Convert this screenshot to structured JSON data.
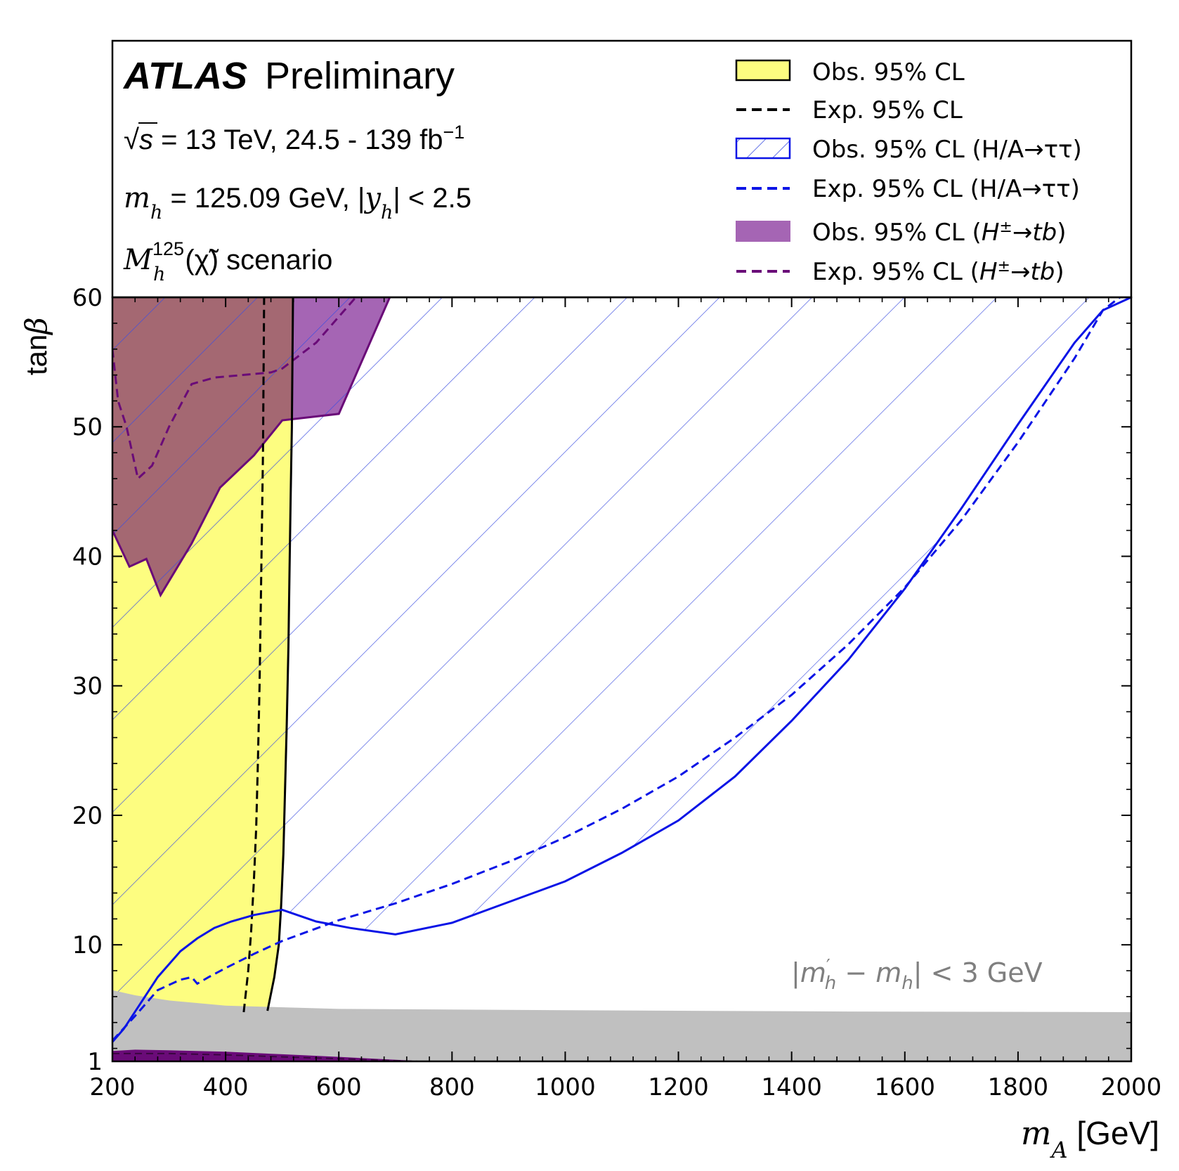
{
  "chart_data": {
    "type": "area",
    "experiment": {
      "label_bold": "ATLAS",
      "label_rest": "Preliminary"
    },
    "info_lines": [
      "√s = 13 TeV, 24.5 - 139 fb⁻¹",
      "m_h = 125.09 GeV, |y_h| < 2.5",
      "M_h^125(χ̃) scenario"
    ],
    "info_parts": {
      "sqrt": "√",
      "s": "s",
      "energy": " = 13 TeV, 24.5 - 139 fb",
      "lumi_exp": "−1",
      "m": "m",
      "h": "h",
      "mh_value": " = 125.09 GeV, |",
      "y": "y",
      "yh_cut": "| < 2.5",
      "M": "M",
      "M_sup": "125",
      "chi": "(χ̃)",
      "scenario": " scenario"
    },
    "xlabel": {
      "var": "m",
      "sub": "A",
      "unit": " [GeV]"
    },
    "ylabel": {
      "text": "tan",
      "greek": "β"
    },
    "xlim": [
      200,
      2000
    ],
    "ylim": [
      1,
      60
    ],
    "xticks": [
      200,
      400,
      600,
      800,
      1000,
      1200,
      1400,
      1600,
      1800,
      2000
    ],
    "yticks": [
      1,
      10,
      20,
      30,
      40,
      50,
      60
    ],
    "legend_position": "top-right",
    "legend": [
      {
        "label": "Obs. 95% CL",
        "style": "fill-yellow"
      },
      {
        "label": "Exp. 95% CL",
        "style": "dash-black"
      },
      {
        "label": "Obs. 95% CL (H/A→ττ)",
        "style": "hatch-blue"
      },
      {
        "label": "Exp. 95% CL (H/A→ττ)",
        "style": "dash-blue"
      },
      {
        "label_pre": "Obs. 95% CL (",
        "label_H": "H",
        "label_pm": "±",
        "label_arrow": "→",
        "label_tb": "tb",
        "label_post": ")",
        "style": "fill-purple"
      },
      {
        "label_pre": "Exp. 95% CL (",
        "label_H": "H",
        "label_pm": "±",
        "label_arrow": "→",
        "label_tb": "tb",
        "label_post": ")",
        "style": "dash-purple"
      }
    ],
    "annotation": {
      "text": "|m′_h − m_h| < 3 GeV",
      "pre": "|",
      "m1": "m",
      "m1_sub": "h",
      "m1_prime": "′",
      "minus": " − ",
      "m2": "m",
      "m2_sub": "h",
      "post": "| < 3 GeV"
    },
    "colors": {
      "yellow": "#fdfd80",
      "blue": "#0a14e6",
      "hatch": "#3c4ee0",
      "purple_fill": "#a565b4",
      "purple_dark": "#6a0b78",
      "overlap": "#a46872",
      "grey": "#c0c0c0"
    },
    "series": [
      {
        "name": "Obs. 95% CL",
        "points": [
          [
            474,
            4.9
          ],
          [
            486,
            7.5
          ],
          [
            494,
            10
          ],
          [
            498,
            13
          ],
          [
            502,
            17
          ],
          [
            505,
            22
          ],
          [
            508,
            27
          ],
          [
            511,
            33
          ],
          [
            513,
            39
          ],
          [
            515,
            45
          ],
          [
            517,
            50
          ],
          [
            518,
            55
          ],
          [
            519,
            60
          ]
        ]
      },
      {
        "name": "Exp. 95% CL",
        "points": [
          [
            432,
            4.8
          ],
          [
            440,
            8
          ],
          [
            445,
            11
          ],
          [
            450,
            15
          ],
          [
            454,
            19
          ],
          [
            457,
            24
          ],
          [
            460,
            30
          ],
          [
            462,
            36
          ],
          [
            464,
            42
          ],
          [
            466,
            48
          ],
          [
            467,
            54
          ],
          [
            468,
            60
          ]
        ]
      },
      {
        "name": "Obs. 95% CL (H/A→ττ)",
        "points": [
          [
            200,
            2.5
          ],
          [
            220,
            3.5
          ],
          [
            250,
            5.5
          ],
          [
            280,
            7.5
          ],
          [
            300,
            8.5
          ],
          [
            320,
            9.5
          ],
          [
            350,
            10.5
          ],
          [
            380,
            11.3
          ],
          [
            410,
            11.8
          ],
          [
            450,
            12.3
          ],
          [
            500,
            12.7
          ],
          [
            560,
            11.8
          ],
          [
            620,
            11.3
          ],
          [
            700,
            10.8
          ],
          [
            800,
            11.7
          ],
          [
            900,
            13.3
          ],
          [
            1000,
            14.9
          ],
          [
            1100,
            17.1
          ],
          [
            1200,
            19.6
          ],
          [
            1300,
            23
          ],
          [
            1400,
            27.3
          ],
          [
            1500,
            32
          ],
          [
            1600,
            37.5
          ],
          [
            1700,
            43.7
          ],
          [
            1800,
            50.2
          ],
          [
            1900,
            56.5
          ],
          [
            1950,
            59
          ],
          [
            2000,
            60
          ]
        ]
      },
      {
        "name": "Exp. 95% CL (H/A→ττ)",
        "points": [
          [
            200,
            2.6
          ],
          [
            240,
            4.5
          ],
          [
            280,
            6.5
          ],
          [
            320,
            7.3
          ],
          [
            340,
            7.5
          ],
          [
            350,
            7
          ],
          [
            370,
            7.5
          ],
          [
            400,
            8.2
          ],
          [
            450,
            9.3
          ],
          [
            500,
            10.3
          ],
          [
            600,
            11.9
          ],
          [
            700,
            13.2
          ],
          [
            800,
            14.7
          ],
          [
            900,
            16.4
          ],
          [
            1000,
            18.3
          ],
          [
            1100,
            20.5
          ],
          [
            1200,
            23
          ],
          [
            1300,
            26
          ],
          [
            1400,
            29.3
          ],
          [
            1500,
            33.2
          ],
          [
            1600,
            37.6
          ],
          [
            1700,
            42.8
          ],
          [
            1800,
            48.8
          ],
          [
            1900,
            55.3
          ],
          [
            1950,
            59
          ],
          [
            1980,
            60
          ]
        ]
      },
      {
        "name": "Obs. 95% CL (H±→tb)",
        "points": [
          [
            200,
            60
          ],
          [
            200,
            42
          ],
          [
            230,
            39.2
          ],
          [
            260,
            39.8
          ],
          [
            285,
            37
          ],
          [
            340,
            41
          ],
          [
            390,
            45.3
          ],
          [
            450,
            47.8
          ],
          [
            500,
            50.5
          ],
          [
            600,
            51
          ],
          [
            690,
            60
          ]
        ]
      },
      {
        "name": "Exp. 95% CL (H±→tb)",
        "points": [
          [
            200,
            56
          ],
          [
            210,
            52
          ],
          [
            225,
            50
          ],
          [
            245,
            46
          ],
          [
            270,
            47
          ],
          [
            300,
            50
          ],
          [
            340,
            53.3
          ],
          [
            380,
            53.8
          ],
          [
            430,
            54
          ],
          [
            480,
            54.2
          ],
          [
            500,
            54.5
          ],
          [
            560,
            56.5
          ],
          [
            600,
            58.5
          ],
          [
            630,
            60
          ]
        ]
      },
      {
        "name": "Obs. 95% CL (H±→tb) low",
        "points": [
          [
            200,
            1.8
          ],
          [
            240,
            1.9
          ],
          [
            300,
            1.85
          ],
          [
            400,
            1.75
          ],
          [
            500,
            1.55
          ],
          [
            600,
            1.35
          ],
          [
            700,
            1.12
          ],
          [
            760,
            1
          ]
        ]
      },
      {
        "name": "Exp. 95% CL (H±→tb) low",
        "points": [
          [
            200,
            1.6
          ],
          [
            300,
            1.6
          ],
          [
            400,
            1.5
          ],
          [
            500,
            1.35
          ],
          [
            600,
            1.2
          ],
          [
            700,
            1.05
          ],
          [
            740,
            1
          ]
        ]
      },
      {
        "name": "|m′h − mh| < 3 GeV",
        "points": [
          [
            200,
            6.5
          ],
          [
            240,
            6.1
          ],
          [
            300,
            5.7
          ],
          [
            400,
            5.3
          ],
          [
            600,
            5.05
          ],
          [
            1000,
            4.95
          ],
          [
            1500,
            4.85
          ],
          [
            2000,
            4.8
          ]
        ]
      }
    ]
  }
}
